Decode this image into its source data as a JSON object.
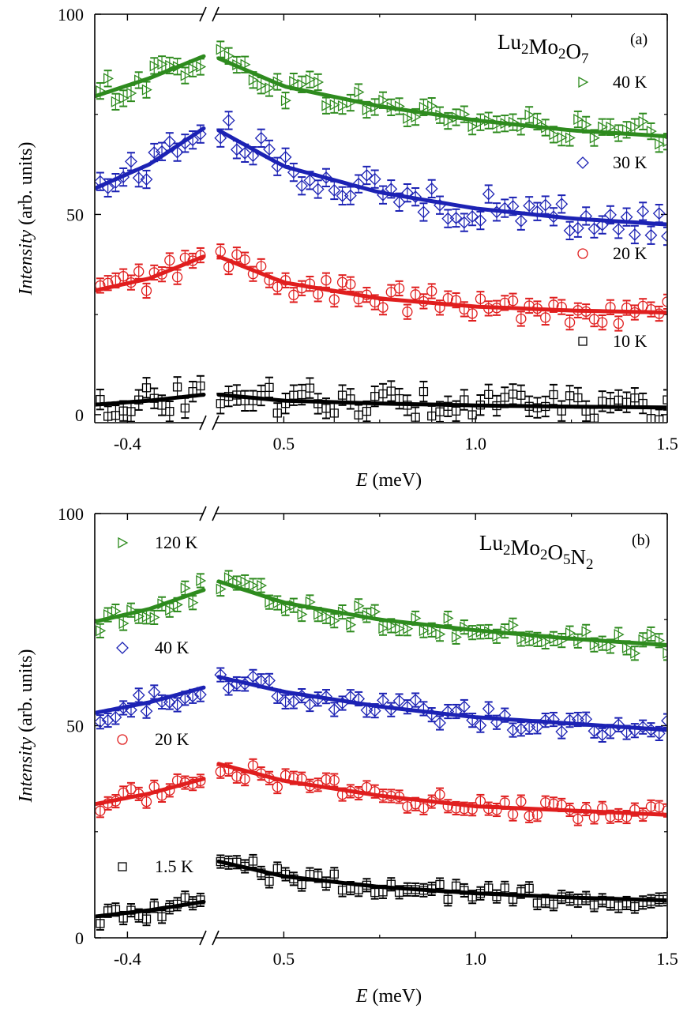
{
  "chart_data": [
    {
      "type": "scatter",
      "panel_label": "(a)",
      "title": "Lu2Mo2O7",
      "title_parts": [
        {
          "t": "Lu",
          "sub": false
        },
        {
          "t": "2",
          "sub": true
        },
        {
          "t": "Mo",
          "sub": false
        },
        {
          "t": "2",
          "sub": true
        },
        {
          "t": "O",
          "sub": false
        },
        {
          "t": "7",
          "sub": true
        }
      ],
      "xlabel": "E (meV)",
      "xlabel_italic": "E",
      "xlabel_rest": " (meV)",
      "ylabel": "Intensity (arb. units)",
      "ylabel_italic": "Intensity",
      "ylabel_rest": " (arb. units)",
      "ylim": [
        -2,
        100
      ],
      "x_segments": [
        {
          "range": [
            -0.43,
            -0.33
          ],
          "ticks": [
            -0.4
          ],
          "tick_labels": [
            "-0.4"
          ]
        },
        {
          "range": [
            0.32,
            1.5
          ],
          "ticks": [
            0.5,
            1.0,
            1.5
          ],
          "tick_labels": [
            "0.5",
            "1.0",
            "1.5"
          ]
        }
      ],
      "y_ticks": [
        0,
        50,
        100
      ],
      "y_tick_labels": [
        "0",
        "50",
        "100"
      ],
      "legend_position": "right",
      "series": [
        {
          "name": "40 K",
          "label": "40 K",
          "marker": "triangle-right",
          "color": "#2e8b1e",
          "fit": [
            [
              -0.43,
              79.5
            ],
            [
              -0.38,
              84
            ],
            [
              -0.33,
              89.5
            ],
            [
              0.33,
              89
            ],
            [
              0.5,
              82
            ],
            [
              0.75,
              77
            ],
            [
              1.0,
              73.5
            ],
            [
              1.25,
              71
            ],
            [
              1.5,
              69.5
            ]
          ],
          "amp": 3.5,
          "err": 2.0
        },
        {
          "name": "30 K",
          "label": "30 K",
          "marker": "diamond",
          "color": "#1c22b4",
          "fit": [
            [
              -0.43,
              56.5
            ],
            [
              -0.38,
              62.5
            ],
            [
              -0.33,
              71.5
            ],
            [
              0.33,
              71
            ],
            [
              0.5,
              62
            ],
            [
              0.75,
              55.5
            ],
            [
              1.0,
              51.5
            ],
            [
              1.25,
              49
            ],
            [
              1.5,
              47.5
            ]
          ],
          "amp": 4.0,
          "err": 2.2
        },
        {
          "name": "20 K",
          "label": "20 K",
          "marker": "circle",
          "color": "#e01e1e",
          "fit": [
            [
              -0.43,
              31
            ],
            [
              -0.38,
              34
            ],
            [
              -0.33,
              39.5
            ],
            [
              0.33,
              39.5
            ],
            [
              0.5,
              33
            ],
            [
              0.75,
              29
            ],
            [
              1.0,
              27
            ],
            [
              1.25,
              26
            ],
            [
              1.5,
              25.5
            ]
          ],
          "amp": 3.0,
          "err": 1.8
        },
        {
          "name": "10 K",
          "label": "10 K",
          "marker": "square",
          "color": "#000000",
          "fit": [
            [
              -0.43,
              2.5
            ],
            [
              -0.38,
              3.5
            ],
            [
              -0.33,
              5
            ],
            [
              0.33,
              5
            ],
            [
              0.5,
              3.5
            ],
            [
              0.75,
              2.8
            ],
            [
              1.0,
              2.3
            ],
            [
              1.25,
              2
            ],
            [
              1.5,
              1.8
            ]
          ],
          "amp": 3.5,
          "err": 2.5
        }
      ]
    },
    {
      "type": "scatter",
      "panel_label": "(b)",
      "title": "Lu2Mo2O5N2",
      "title_parts": [
        {
          "t": "Lu",
          "sub": false
        },
        {
          "t": "2",
          "sub": true
        },
        {
          "t": "Mo",
          "sub": false
        },
        {
          "t": "2",
          "sub": true
        },
        {
          "t": "O",
          "sub": false
        },
        {
          "t": "5",
          "sub": true
        },
        {
          "t": "N",
          "sub": false
        },
        {
          "t": "2",
          "sub": true
        }
      ],
      "xlabel": "E (meV)",
      "xlabel_italic": "E",
      "xlabel_rest": " (meV)",
      "ylabel": "Intensity (arb. units)",
      "ylabel_italic": "Intensity",
      "ylabel_rest": " (arb. units)",
      "ylim": [
        0,
        100
      ],
      "x_segments": [
        {
          "range": [
            -0.43,
            -0.33
          ],
          "ticks": [
            -0.4
          ],
          "tick_labels": [
            "-0.4"
          ]
        },
        {
          "range": [
            0.32,
            1.5
          ],
          "ticks": [
            0.5,
            1.0,
            1.5
          ],
          "tick_labels": [
            "0.5",
            "1.0",
            "1.5"
          ]
        }
      ],
      "y_ticks": [
        0,
        50,
        100
      ],
      "y_tick_labels": [
        "0",
        "50",
        "100"
      ],
      "legend_position": "left",
      "series": [
        {
          "name": "120 K",
          "label": "120 K",
          "marker": "triangle-right",
          "color": "#2e8b1e",
          "fit": [
            [
              -0.43,
              74.5
            ],
            [
              -0.38,
              77.5
            ],
            [
              -0.33,
              82
            ],
            [
              0.33,
              84
            ],
            [
              0.5,
              79
            ],
            [
              0.75,
              75
            ],
            [
              1.0,
              72.5
            ],
            [
              1.25,
              70.5
            ],
            [
              1.5,
              69
            ]
          ],
          "amp": 2.5,
          "err": 1.6
        },
        {
          "name": "40 K",
          "label": "40 K",
          "marker": "diamond",
          "color": "#1c22b4",
          "fit": [
            [
              -0.43,
              53
            ],
            [
              -0.38,
              55.5
            ],
            [
              -0.33,
              59
            ],
            [
              0.33,
              61.5
            ],
            [
              0.5,
              58
            ],
            [
              0.75,
              54.5
            ],
            [
              1.0,
              52
            ],
            [
              1.25,
              50.5
            ],
            [
              1.5,
              49
            ]
          ],
          "amp": 2.5,
          "err": 1.6
        },
        {
          "name": "20 K",
          "label": "20 K",
          "marker": "circle",
          "color": "#e01e1e",
          "fit": [
            [
              -0.43,
              31.5
            ],
            [
              -0.38,
              34
            ],
            [
              -0.33,
              37.5
            ],
            [
              0.33,
              41
            ],
            [
              0.5,
              37
            ],
            [
              0.75,
              33.5
            ],
            [
              1.0,
              31
            ],
            [
              1.25,
              30
            ],
            [
              1.5,
              29
            ]
          ],
          "amp": 2.0,
          "err": 1.5
        },
        {
          "name": "1.5 K",
          "label": "1.5 K",
          "marker": "square",
          "color": "#000000",
          "fit": [
            [
              -0.43,
              5
            ],
            [
              -0.38,
              6.5
            ],
            [
              -0.33,
              8.5
            ],
            [
              0.33,
              18
            ],
            [
              0.5,
              14.5
            ],
            [
              0.75,
              12
            ],
            [
              1.0,
              10.5
            ],
            [
              1.25,
              9.5
            ],
            [
              1.5,
              8.8
            ]
          ],
          "amp": 2.0,
          "err": 1.5
        }
      ]
    }
  ]
}
